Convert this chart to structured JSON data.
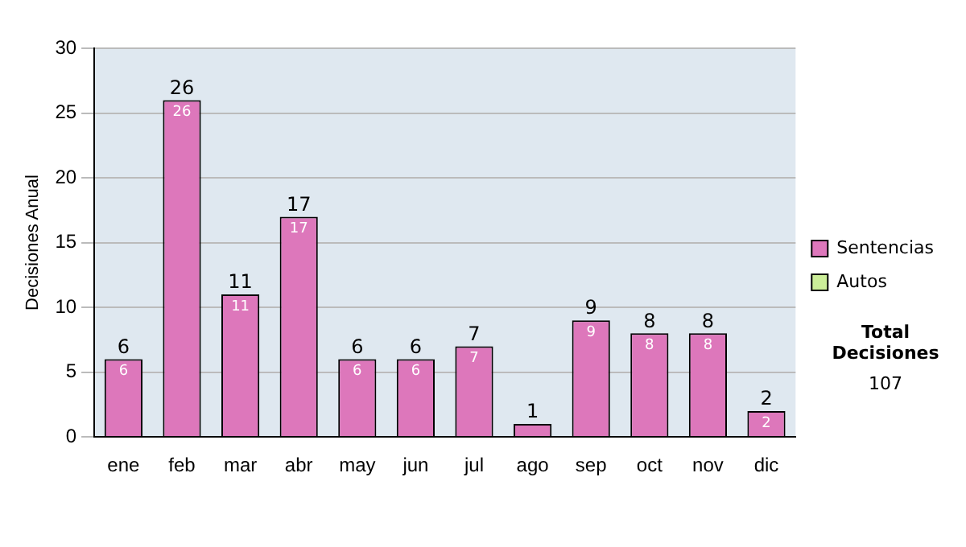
{
  "chart_data": {
    "type": "bar",
    "stacked": true,
    "ylabel": "Decisiones Anual",
    "categories": [
      "ene",
      "feb",
      "mar",
      "abr",
      "may",
      "jun",
      "jul",
      "ago",
      "sep",
      "oct",
      "nov",
      "dic"
    ],
    "series": [
      {
        "name": "Sentencias",
        "color": "#dd77bb",
        "values": [
          6,
          26,
          11,
          17,
          6,
          6,
          7,
          1,
          9,
          8,
          8,
          2
        ],
        "value_labels": [
          "6",
          "26",
          "11",
          "17",
          "6",
          "6",
          "7",
          null,
          "9",
          "8",
          "8",
          "2"
        ]
      },
      {
        "name": "Autos",
        "color": "#ccee99",
        "values": [
          0,
          0,
          0,
          0,
          0,
          0,
          0,
          0,
          0,
          0,
          0,
          0
        ]
      }
    ],
    "totals": [
      "6",
      "26",
      "11",
      "17",
      "6",
      "6",
      "7",
      "1",
      "9",
      "8",
      "8",
      "2"
    ],
    "ylim": [
      0,
      30
    ],
    "yticks": [
      0,
      5,
      10,
      15,
      20,
      25,
      30
    ],
    "grid": "y",
    "legend": "right",
    "annotations": [
      "Total Decisiones",
      "107"
    ]
  }
}
